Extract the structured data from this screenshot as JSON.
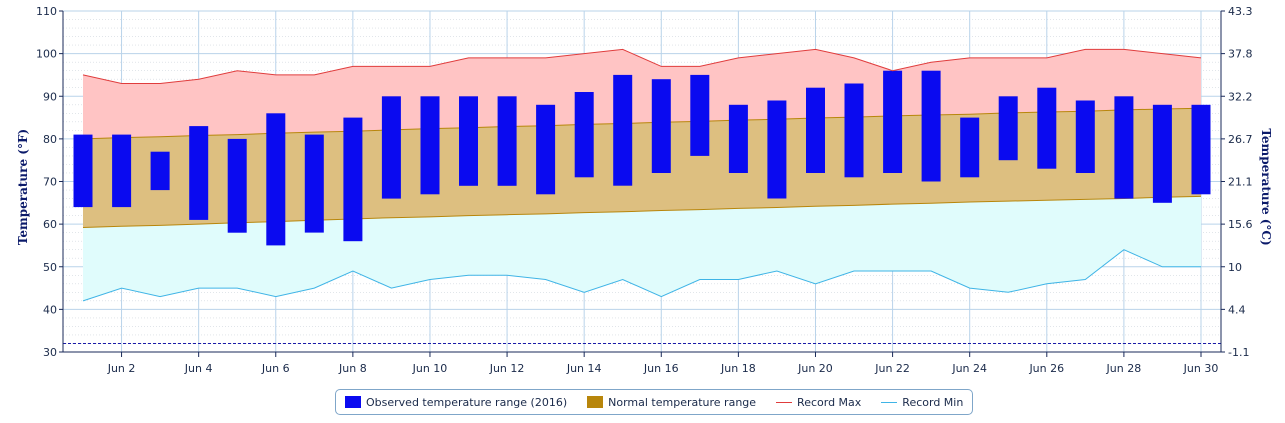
{
  "chart_data": {
    "type": "bar",
    "x": [
      "Jun 1",
      "Jun 2",
      "Jun 3",
      "Jun 4",
      "Jun 5",
      "Jun 6",
      "Jun 7",
      "Jun 8",
      "Jun 9",
      "Jun 10",
      "Jun 11",
      "Jun 12",
      "Jun 13",
      "Jun 14",
      "Jun 15",
      "Jun 16",
      "Jun 17",
      "Jun 18",
      "Jun 19",
      "Jun 20",
      "Jun 21",
      "Jun 22",
      "Jun 23",
      "Jun 24",
      "Jun 25",
      "Jun 26",
      "Jun 27",
      "Jun 28",
      "Jun 29",
      "Jun 30"
    ],
    "x_tick_labels": [
      "Jun 2",
      "Jun 4",
      "Jun 6",
      "Jun 8",
      "Jun 10",
      "Jun 12",
      "Jun 14",
      "Jun 16",
      "Jun 18",
      "Jun 20",
      "Jun 22",
      "Jun 24",
      "Jun 26",
      "Jun 28",
      "Jun 30"
    ],
    "ylabel": "Temperature (°F)",
    "ylabel_right": "Temperature (°C)",
    "ylim": [
      30,
      110
    ],
    "y_ticks": [
      30,
      40,
      50,
      60,
      70,
      80,
      90,
      100,
      110
    ],
    "y_ticks_right": [
      "-1.1",
      "4.4",
      "10",
      "15.6",
      "21.1",
      "26.7",
      "32.2",
      "37.8",
      "43.3"
    ],
    "freezing_line": 32,
    "series": [
      {
        "name": "Observed temperature range (2016)",
        "kind": "range-bar",
        "color": "#0a0af0",
        "low": [
          64,
          64,
          68,
          61,
          58,
          55,
          58,
          56,
          66,
          67,
          69,
          69,
          67,
          71,
          69,
          72,
          76,
          72,
          66,
          72,
          71,
          72,
          70,
          71,
          75,
          73,
          72,
          66,
          65,
          67
        ],
        "high": [
          81,
          81,
          77,
          83,
          80,
          86,
          81,
          85,
          90,
          90,
          90,
          90,
          88,
          91,
          95,
          94,
          95,
          88,
          89,
          92,
          93,
          96,
          96,
          85,
          90,
          92,
          89,
          90,
          88,
          88
        ]
      },
      {
        "name": "Normal temperature range",
        "kind": "area-range",
        "color": "#b8860b",
        "low": [
          59.2,
          59.5,
          59.7,
          60.0,
          60.3,
          60.6,
          60.9,
          61.2,
          61.5,
          61.7,
          62.0,
          62.2,
          62.4,
          62.7,
          62.9,
          63.2,
          63.4,
          63.7,
          63.9,
          64.2,
          64.4,
          64.7,
          64.9,
          65.2,
          65.4,
          65.6,
          65.8,
          66.0,
          66.3,
          66.5
        ],
        "high": [
          80.0,
          80.3,
          80.5,
          80.8,
          81.0,
          81.3,
          81.6,
          81.8,
          82.1,
          82.4,
          82.6,
          82.9,
          83.1,
          83.4,
          83.6,
          83.9,
          84.1,
          84.4,
          84.6,
          84.9,
          85.1,
          85.4,
          85.6,
          85.8,
          86.1,
          86.3,
          86.5,
          86.8,
          87.0,
          87.2
        ]
      },
      {
        "name": "Record Max",
        "kind": "line",
        "color": "#e03c3c",
        "values": [
          95,
          93,
          93,
          94,
          96,
          95,
          95,
          97,
          97,
          97,
          99,
          99,
          99,
          100,
          101,
          97,
          97,
          99,
          100,
          101,
          99,
          96,
          98,
          99,
          99,
          99,
          101,
          101,
          100,
          99
        ]
      },
      {
        "name": "Record Min",
        "kind": "line",
        "color": "#3fb4e6",
        "values": [
          42,
          45,
          43,
          45,
          45,
          43,
          45,
          49,
          45,
          47,
          48,
          48,
          47,
          44,
          47,
          43,
          47,
          47,
          49,
          46,
          49,
          49,
          49,
          45,
          44,
          46,
          47,
          54,
          50,
          50
        ]
      }
    ],
    "grid": true,
    "legend": "bottom-center"
  }
}
